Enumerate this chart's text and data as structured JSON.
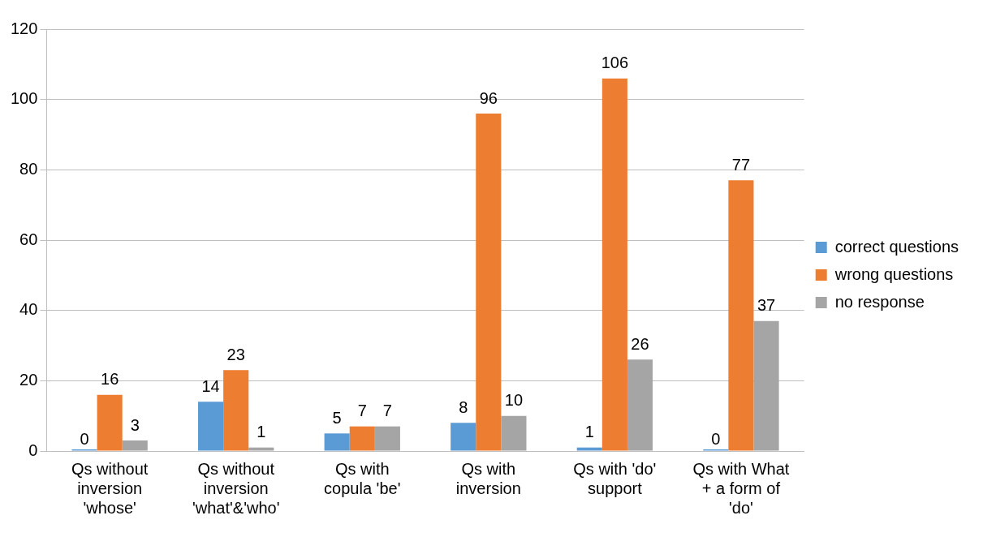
{
  "chart_data": {
    "type": "bar",
    "categories": [
      "Qs without inversion 'whose'",
      "Qs without inversion 'what'&'who'",
      "Qs with copula 'be'",
      "Qs with inversion",
      "Qs with 'do' support",
      "Qs with What + a form of 'do'"
    ],
    "series": [
      {
        "name": "correct questions",
        "color": "#5b9bd5",
        "values": [
          0,
          14,
          5,
          8,
          1,
          0
        ]
      },
      {
        "name": "wrong questions",
        "color": "#ed7d31",
        "values": [
          16,
          23,
          7,
          96,
          106,
          77
        ]
      },
      {
        "name": "no response",
        "color": "#a5a5a5",
        "values": [
          3,
          1,
          7,
          10,
          26,
          37
        ]
      }
    ],
    "ylim": [
      0,
      120
    ],
    "yticks": [
      0,
      20,
      40,
      60,
      80,
      100,
      120
    ],
    "grid": "y",
    "legend": "right",
    "data_labels": true
  }
}
